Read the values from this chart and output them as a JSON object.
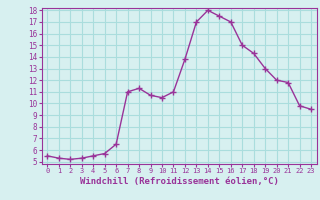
{
  "x": [
    0,
    1,
    2,
    3,
    4,
    5,
    6,
    7,
    8,
    9,
    10,
    11,
    12,
    13,
    14,
    15,
    16,
    17,
    18,
    19,
    20,
    21,
    22,
    23
  ],
  "y": [
    5.5,
    5.3,
    5.2,
    5.3,
    5.5,
    5.7,
    6.5,
    11.0,
    11.3,
    10.7,
    10.5,
    11.0,
    13.8,
    17.0,
    18.0,
    17.5,
    17.0,
    15.0,
    14.3,
    13.0,
    12.0,
    11.8,
    9.8,
    9.5
  ],
  "line_color": "#993399",
  "marker_color": "#993399",
  "bg_color": "#d7f0f0",
  "grid_color": "#aadddd",
  "xlabel": "Windchill (Refroidissement éolien,°C)",
  "xlabel_color": "#993399",
  "tick_color": "#993399",
  "spine_color": "#993399",
  "ylim": [
    5,
    18
  ],
  "xlim": [
    -0.5,
    23.5
  ],
  "yticks": [
    5,
    6,
    7,
    8,
    9,
    10,
    11,
    12,
    13,
    14,
    15,
    16,
    17,
    18
  ],
  "xticks": [
    0,
    1,
    2,
    3,
    4,
    5,
    6,
    7,
    8,
    9,
    10,
    11,
    12,
    13,
    14,
    15,
    16,
    17,
    18,
    19,
    20,
    21,
    22,
    23
  ],
  "tick_fontsize": 6,
  "xlabel_fontsize": 6.5
}
